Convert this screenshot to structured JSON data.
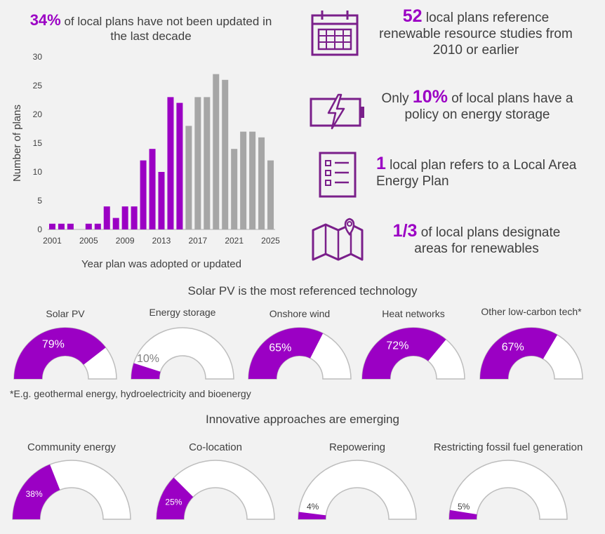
{
  "headline": {
    "pct": "34%",
    "text": " of local plans have not been updated in the last decade"
  },
  "colors": {
    "purple": "#9b00c4",
    "grey": "#a6a6a6",
    "axis": "#c8c8c8",
    "text": "#404040"
  },
  "stats": [
    {
      "icon": "calendar-icon",
      "num": "52",
      "text": " local plans reference renewable resource studies from 2010 or earlier"
    },
    {
      "icon": "battery-icon",
      "pre": "Only ",
      "num": "10%",
      "text": " of local plans have a policy on energy storage"
    },
    {
      "icon": "checklist-icon",
      "num": "1",
      "text": " local plan refers to a Local Area Energy Plan"
    },
    {
      "icon": "map-pin-icon",
      "num": "1/3",
      "text": " of local plans designate areas for renewables"
    }
  ],
  "chart_data": {
    "type": "bar",
    "xlabel": "Year plan was adopted or updated",
    "ylabel": "Number of plans",
    "ylim": [
      0,
      30
    ],
    "yticks": [
      "0",
      "5",
      "10",
      "15",
      "20",
      "25",
      "30"
    ],
    "xticks": [
      "2001",
      "2005",
      "2009",
      "2013",
      "2017",
      "2021",
      "2025"
    ],
    "categories": [
      2001,
      2002,
      2003,
      2004,
      2005,
      2006,
      2007,
      2008,
      2009,
      2010,
      2011,
      2012,
      2013,
      2014,
      2015,
      2016,
      2017,
      2018,
      2019,
      2020,
      2021,
      2022,
      2023,
      2024,
      2025
    ],
    "values": [
      1,
      1,
      1,
      0,
      1,
      1,
      4,
      2,
      4,
      4,
      12,
      14,
      10,
      23,
      22,
      18,
      23,
      23,
      27,
      26,
      14,
      17,
      17,
      16,
      12
    ],
    "highlight_through": 2015
  },
  "tech_section": {
    "title": "Solar PV is the most referenced technology",
    "gauges": [
      {
        "label": "Solar PV",
        "pct": 79,
        "pct_text": "79%"
      },
      {
        "label": "Energy storage",
        "pct": 10,
        "pct_text": "10%"
      },
      {
        "label": "Onshore wind",
        "pct": 65,
        "pct_text": "65%"
      },
      {
        "label": "Heat networks",
        "pct": 72,
        "pct_text": "72%"
      },
      {
        "label": "Other low-carbon tech*",
        "pct": 67,
        "pct_text": "67%"
      }
    ],
    "footnote": "*E.g. geothermal energy, hydroelectricity and bioenergy"
  },
  "innov_section": {
    "title": "Innovative approaches are emerging",
    "gauges": [
      {
        "label": "Community energy",
        "pct": 38,
        "pct_text": "38%"
      },
      {
        "label": "Co-location",
        "pct": 25,
        "pct_text": "25%"
      },
      {
        "label": "Repowering",
        "pct": 4,
        "pct_text": "4%"
      },
      {
        "label": "Restricting fossil fuel generation",
        "pct": 5,
        "pct_text": "5%"
      }
    ]
  }
}
